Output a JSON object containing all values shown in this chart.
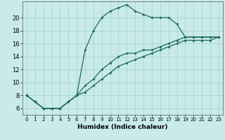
{
  "xlabel": "Humidex (Indice chaleur)",
  "background_color": "#c8eaea",
  "grid_color": "#a8d4d4",
  "line_color": "#1a6b5a",
  "xlim": [
    -0.5,
    23.5
  ],
  "ylim": [
    5.0,
    22.5
  ],
  "yticks": [
    6,
    8,
    10,
    12,
    14,
    16,
    18,
    20
  ],
  "xticks": [
    0,
    1,
    2,
    3,
    4,
    5,
    6,
    7,
    8,
    9,
    10,
    11,
    12,
    13,
    14,
    15,
    16,
    17,
    18,
    19,
    20,
    21,
    22,
    23
  ],
  "xlabels": [
    "0",
    "1",
    "2",
    "3",
    "4",
    "5",
    "6",
    "7",
    "8",
    "9",
    "10",
    "11",
    "12",
    "13",
    "14",
    "15",
    "16",
    "17",
    "18",
    "19",
    "20",
    "21",
    "22",
    "23"
  ],
  "series": [
    {
      "x": [
        0,
        1,
        2,
        3,
        4,
        5,
        6,
        7,
        8,
        9,
        10,
        11,
        12,
        13,
        14,
        15,
        16,
        17,
        18,
        19,
        20,
        21,
        22,
        23
      ],
      "y": [
        8,
        7,
        6,
        6,
        6,
        7,
        8,
        15,
        18,
        20,
        21,
        21.5,
        22,
        21,
        20.5,
        20,
        20,
        20,
        19,
        17,
        17,
        17,
        17,
        17
      ]
    },
    {
      "x": [
        0,
        1,
        2,
        3,
        4,
        5,
        6,
        7,
        8,
        9,
        10,
        11,
        12,
        13,
        14,
        15,
        16,
        17,
        18,
        19,
        20,
        21,
        22,
        23
      ],
      "y": [
        8,
        7,
        6,
        6,
        6,
        7,
        8,
        9.5,
        10.5,
        12,
        13,
        14,
        14.5,
        14.5,
        15,
        15,
        15.5,
        16,
        16.5,
        17,
        17,
        17,
        17,
        17
      ]
    },
    {
      "x": [
        0,
        1,
        2,
        3,
        4,
        5,
        6,
        7,
        8,
        9,
        10,
        11,
        12,
        13,
        14,
        15,
        16,
        17,
        18,
        19,
        20,
        21,
        22,
        23
      ],
      "y": [
        8,
        7,
        6,
        6,
        6,
        7,
        8,
        8.5,
        9.5,
        10.5,
        11.5,
        12.5,
        13,
        13.5,
        14,
        14.5,
        15,
        15.5,
        16,
        16.5,
        16.5,
        16.5,
        16.5,
        17
      ]
    }
  ]
}
